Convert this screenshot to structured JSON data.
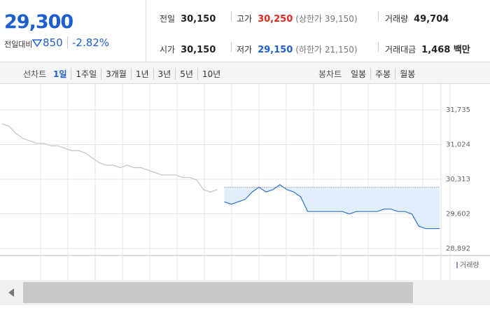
{
  "price": "29,300",
  "change_label": "전일대비",
  "change": "850",
  "change_rate": "-2.82%",
  "stats": [
    {
      "label": "전일",
      "value": "30,150"
    },
    {
      "label": "고가",
      "value": "30,250",
      "note": "(상한가 39,150)"
    },
    {
      "label": "거래량",
      "value": "49,704"
    },
    {
      "label": "시가",
      "value": "30,150"
    },
    {
      "label": "저가",
      "value": "29,150",
      "note": "(하한가 21,150)"
    },
    {
      "label": "거래대금",
      "value": "1,468 백만"
    }
  ],
  "tabs": {
    "line_label": "선차트",
    "line": [
      "1일",
      "1주일",
      "3개월",
      "1년",
      "3년",
      "5년",
      "10년"
    ],
    "candle_label": "봉차트",
    "candle": [
      "일봉",
      "주봉",
      "월봉"
    ]
  },
  "chart": {
    "type": "line",
    "ylim": [
      28748,
      32295
    ],
    "yticks": [
      {
        "value": 31735,
        "label": "31,735"
      },
      {
        "value": 31024,
        "label": "31,024"
      },
      {
        "value": 30313,
        "label": "30,313"
      },
      {
        "value": 29602,
        "label": "29,602"
      },
      {
        "value": 28892,
        "label": "28,892"
      }
    ],
    "grid": true,
    "reference": 30150,
    "volume_label": "거래량",
    "series": [
      {
        "color": "#c4c4c4",
        "values": [
          31450,
          31400,
          31250,
          31150,
          31100,
          31050,
          31050,
          31000,
          31000,
          30950,
          30900,
          30900,
          30850,
          30750,
          30650,
          30600,
          30600,
          30550,
          30600,
          30550,
          30550,
          30500,
          30450,
          30400,
          30400,
          30400,
          30350,
          30350,
          30300,
          30100,
          30050,
          30100,
          null,
          null,
          null,
          null,
          null,
          null,
          null,
          null,
          null,
          null,
          null,
          null,
          null,
          null,
          null,
          null,
          null,
          null,
          null,
          null,
          null,
          null,
          null,
          null,
          null,
          null,
          null,
          null,
          null,
          null,
          null,
          null
        ]
      },
      {
        "color": "#2f6fd0",
        "fill": "#e3eefb",
        "values": [
          null,
          null,
          null,
          null,
          null,
          null,
          null,
          null,
          null,
          null,
          null,
          null,
          null,
          null,
          null,
          null,
          null,
          null,
          null,
          null,
          null,
          null,
          null,
          null,
          null,
          null,
          null,
          null,
          null,
          null,
          null,
          null,
          29850,
          29800,
          29850,
          29900,
          30050,
          30150,
          30050,
          30100,
          30200,
          30100,
          30050,
          29950,
          29650,
          29650,
          29650,
          29650,
          29650,
          29650,
          29600,
          29650,
          29650,
          29650,
          29650,
          29700,
          29700,
          29650,
          29650,
          29600,
          29350,
          29300,
          29300,
          29300
        ]
      }
    ]
  }
}
